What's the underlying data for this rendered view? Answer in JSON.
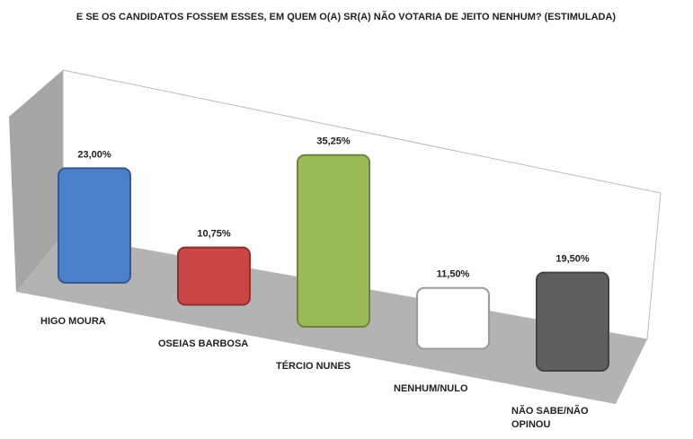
{
  "chart_data": {
    "type": "bar",
    "title": "E SE OS CANDIDATOS FOSSEM ESSES, EM QUEM O(A) SR(A) NÃO VOTARIA DE JEITO NENHUM? (ESTIMULADA)",
    "categories": [
      "HIGO MOURA",
      "OSEIAS BARBOSA",
      "TÉRCIO NUNES",
      "NENHUM/NULO",
      "NÃO SABE/NÃO OPINOU"
    ],
    "values": [
      23,
      10.75,
      35.25,
      11.5,
      19.5
    ],
    "value_labels": [
      "23,00%",
      "10,75%",
      "35,25%",
      "11,50%",
      "19,50%"
    ],
    "colors": [
      "#4a7fc9",
      "#c84646",
      "#9bbb59",
      "#ffffff",
      "#5f5f5f"
    ]
  }
}
